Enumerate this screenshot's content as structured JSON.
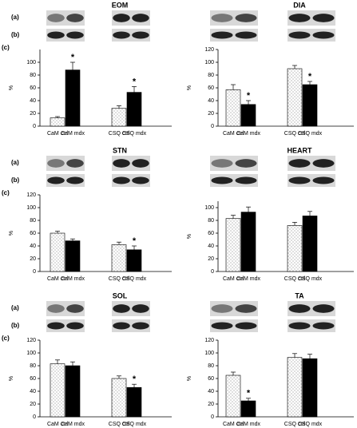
{
  "chart_data": [
    {
      "type": "bar",
      "title": "EOM",
      "row_labels": [
        "(a)",
        "(b)",
        "(c)"
      ],
      "y_label": "%",
      "categories": [
        "CaM ctrl",
        "CaM mdx",
        "CSQ ctrl",
        "CSQ mdx"
      ],
      "values": [
        13,
        88,
        28,
        53
      ],
      "errors": [
        2,
        12,
        4,
        9
      ],
      "bar_styles": [
        "dotted",
        "solid",
        "dotted",
        "solid"
      ],
      "color": "#000000",
      "significant": [
        false,
        true,
        false,
        true
      ],
      "marker_text": "*",
      "ylim": [
        0,
        120
      ],
      "yticks": [
        0,
        20,
        40,
        60,
        80,
        100
      ]
    },
    {
      "type": "bar",
      "title": "DIA",
      "y_label": "%",
      "categories": [
        "CaM ctrl",
        "CaM mdx",
        "CSQ ctrl",
        "CSQ mdx"
      ],
      "values": [
        57,
        34,
        90,
        65
      ],
      "errors": [
        8,
        6,
        5,
        5
      ],
      "bar_styles": [
        "dotted",
        "solid",
        "dotted",
        "solid"
      ],
      "color": "#000000",
      "significant": [
        false,
        true,
        false,
        true
      ],
      "marker_text": "*",
      "ylim": [
        0,
        120
      ],
      "yticks": [
        0,
        20,
        40,
        60,
        80,
        100,
        120
      ]
    },
    {
      "type": "bar",
      "title": "STN",
      "row_labels": [
        "(a)",
        "(b)",
        "(c)"
      ],
      "y_label": "%",
      "categories": [
        "CaM ctrl",
        "CaM mdx",
        "CSQ ctrl",
        "CSQ mdx"
      ],
      "values": [
        60,
        48,
        42,
        34
      ],
      "errors": [
        3,
        3,
        4,
        6
      ],
      "bar_styles": [
        "dotted",
        "solid",
        "dotted",
        "solid"
      ],
      "color": "#000000",
      "significant": [
        false,
        false,
        false,
        true
      ],
      "marker_text": "*",
      "ylim": [
        0,
        120
      ],
      "yticks": [
        0,
        20,
        40,
        60,
        80,
        100,
        120
      ]
    },
    {
      "type": "bar",
      "title": "HEART",
      "y_label": "%",
      "categories": [
        "CaM ctrl",
        "CaM mdx",
        "CSQ ctrl",
        "CSQ mdx"
      ],
      "values": [
        83,
        93,
        72,
        87
      ],
      "errors": [
        5,
        8,
        5,
        7
      ],
      "bar_styles": [
        "dotted",
        "solid",
        "dotted",
        "solid"
      ],
      "color": "#000000",
      "significant": [
        false,
        false,
        false,
        false
      ],
      "marker_text": "*",
      "ylim": [
        0,
        110
      ],
      "yticks": [
        0,
        20,
        40,
        60,
        80,
        100
      ]
    },
    {
      "type": "bar",
      "title": "SOL",
      "row_labels": [
        "(a)",
        "(b)",
        "(c)"
      ],
      "y_label": "%",
      "categories": [
        "CaM ctrl",
        "CaM mdx",
        "CSQ ctrl",
        "CSQ mdx"
      ],
      "values": [
        83,
        80,
        60,
        46
      ],
      "errors": [
        6,
        6,
        4,
        5
      ],
      "bar_styles": [
        "dotted",
        "solid",
        "dotted",
        "solid"
      ],
      "color": "#000000",
      "significant": [
        false,
        false,
        false,
        true
      ],
      "marker_text": "*",
      "ylim": [
        0,
        120
      ],
      "yticks": [
        0,
        20,
        40,
        60,
        80,
        100,
        120
      ]
    },
    {
      "type": "bar",
      "title": "TA",
      "y_label": "%",
      "categories": [
        "CaM ctrl",
        "CaM mdx",
        "CSQ ctrl",
        "CSQ mdx"
      ],
      "values": [
        65,
        25,
        93,
        91
      ],
      "errors": [
        5,
        4,
        6,
        7
      ],
      "bar_styles": [
        "dotted",
        "solid",
        "dotted",
        "solid"
      ],
      "color": "#000000",
      "significant": [
        false,
        true,
        false,
        false
      ],
      "marker_text": "*",
      "ylim": [
        0,
        120
      ],
      "yticks": [
        0,
        20,
        40,
        60,
        80,
        100,
        120
      ]
    }
  ]
}
